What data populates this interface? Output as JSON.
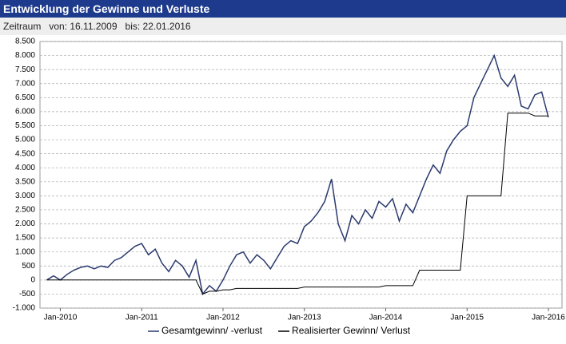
{
  "header": {
    "title": "Entwicklung der Gewinne und Verluste",
    "period_label": "Zeitraum",
    "from": "von: 16.11.2009",
    "to": "bis: 22.01.2016"
  },
  "chart_data": {
    "type": "line",
    "x": [
      "2009-11",
      "2009-12",
      "2010-01",
      "2010-02",
      "2010-03",
      "2010-04",
      "2010-05",
      "2010-06",
      "2010-07",
      "2010-08",
      "2010-09",
      "2010-10",
      "2010-11",
      "2010-12",
      "2011-01",
      "2011-02",
      "2011-03",
      "2011-04",
      "2011-05",
      "2011-06",
      "2011-07",
      "2011-08",
      "2011-09",
      "2011-10",
      "2011-11",
      "2011-12",
      "2012-01",
      "2012-02",
      "2012-03",
      "2012-04",
      "2012-05",
      "2012-06",
      "2012-07",
      "2012-08",
      "2012-09",
      "2012-10",
      "2012-11",
      "2012-12",
      "2013-01",
      "2013-02",
      "2013-03",
      "2013-04",
      "2013-05",
      "2013-06",
      "2013-07",
      "2013-08",
      "2013-09",
      "2013-10",
      "2013-11",
      "2013-12",
      "2014-01",
      "2014-02",
      "2014-03",
      "2014-04",
      "2014-05",
      "2014-06",
      "2014-07",
      "2014-08",
      "2014-09",
      "2014-10",
      "2014-11",
      "2014-12",
      "2015-01",
      "2015-02",
      "2015-03",
      "2015-04",
      "2015-05",
      "2015-06",
      "2015-07",
      "2015-08",
      "2015-09",
      "2015-10",
      "2015-11",
      "2015-12",
      "2016-01"
    ],
    "series": [
      {
        "name": "Gesamtgewinn/ -verlust",
        "color": "#2b3a6e",
        "values": [
          0,
          150,
          0,
          200,
          350,
          450,
          500,
          400,
          500,
          450,
          700,
          800,
          1000,
          1200,
          1300,
          900,
          1100,
          600,
          300,
          700,
          500,
          100,
          700,
          -500,
          -200,
          -400,
          0,
          500,
          900,
          1000,
          600,
          900,
          700,
          400,
          800,
          1200,
          1400,
          1300,
          1900,
          2100,
          2400,
          2800,
          3600,
          2000,
          1400,
          2300,
          2000,
          2500,
          2200,
          2800,
          2600,
          2900,
          2100,
          2700,
          2400,
          3000,
          3600,
          4100,
          3800,
          4600,
          5000,
          5300,
          5500,
          6500,
          7000,
          7500,
          8000,
          7200,
          6900,
          7300,
          6200,
          6100,
          6600,
          6700,
          5800
        ]
      },
      {
        "name": "Realisierter Gewinn/ Verlust",
        "color": "#000000",
        "values": [
          0,
          0,
          0,
          0,
          0,
          0,
          0,
          0,
          0,
          0,
          0,
          0,
          0,
          0,
          0,
          0,
          0,
          0,
          0,
          0,
          0,
          0,
          0,
          -500,
          -400,
          -400,
          -350,
          -350,
          -300,
          -300,
          -300,
          -300,
          -300,
          -300,
          -300,
          -300,
          -300,
          -300,
          -250,
          -250,
          -250,
          -250,
          -250,
          -250,
          -250,
          -250,
          -250,
          -250,
          -250,
          -250,
          -200,
          -200,
          -200,
          -200,
          -200,
          350,
          350,
          350,
          350,
          350,
          350,
          350,
          3000,
          3000,
          3000,
          3000,
          3000,
          3000,
          5950,
          5950,
          5950,
          5950,
          5850,
          5850,
          5850
        ]
      }
    ],
    "xlim": [
      "2009-10",
      "2016-03"
    ],
    "xticks": [
      {
        "value": "2010-01",
        "label": "Jan-2010"
      },
      {
        "value": "2011-01",
        "label": "Jan-2011"
      },
      {
        "value": "2012-01",
        "label": "Jan-2012"
      },
      {
        "value": "2013-01",
        "label": "Jan-2013"
      },
      {
        "value": "2014-01",
        "label": "Jan-2014"
      },
      {
        "value": "2015-01",
        "label": "Jan-2015"
      },
      {
        "value": "2016-01",
        "label": "Jan-2016"
      }
    ],
    "ylim": [
      -1000,
      8500
    ],
    "yticks": [
      {
        "value": -1000,
        "label": "-1.000"
      },
      -500,
      0,
      500,
      {
        "value": 1000,
        "label": "1.000"
      },
      {
        "value": 1500,
        "label": "1.500"
      },
      {
        "value": 2000,
        "label": "2.000"
      },
      {
        "value": 2500,
        "label": "2.500"
      },
      {
        "value": 3000,
        "label": "3.000"
      },
      {
        "value": 3500,
        "label": "3.500"
      },
      {
        "value": 4000,
        "label": "4.000"
      },
      {
        "value": 4500,
        "label": "4.500"
      },
      {
        "value": 5000,
        "label": "5.000"
      },
      {
        "value": 5500,
        "label": "5.500"
      },
      {
        "value": 6000,
        "label": "6.000"
      },
      {
        "value": 6500,
        "label": "6.500"
      },
      {
        "value": 7000,
        "label": "7.000"
      },
      {
        "value": 7500,
        "label": "7.500"
      },
      {
        "value": 8000,
        "label": "8.000"
      },
      {
        "value": 8500,
        "label": "8.500"
      }
    ],
    "grid": true,
    "legend": "bottom"
  }
}
